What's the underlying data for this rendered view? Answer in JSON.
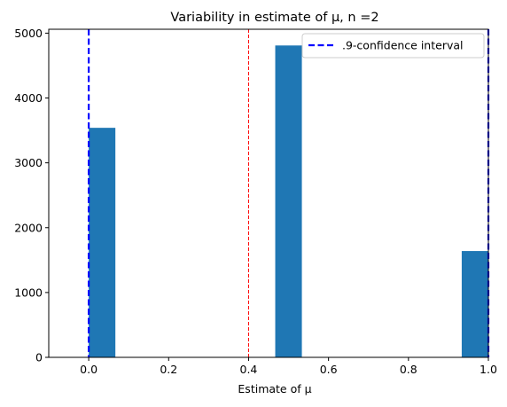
{
  "chart_data": {
    "type": "bar",
    "title": "Variability in estimate of μ, n =2",
    "xlabel": "Estimate of μ",
    "ylabel": "",
    "xlim": [
      -0.1,
      1.0
    ],
    "ylim": [
      0,
      5060
    ],
    "xticks": [
      0.0,
      0.2,
      0.4,
      0.6,
      0.8,
      1.0
    ],
    "xtick_labels": [
      "0.0",
      "0.2",
      "0.4",
      "0.6",
      "0.8",
      "1.0"
    ],
    "yticks": [
      0,
      1000,
      2000,
      3000,
      4000,
      5000
    ],
    "ytick_labels": [
      "0",
      "1000",
      "2000",
      "3000",
      "4000",
      "5000"
    ],
    "bins": [
      {
        "x0": 0.0,
        "x1": 0.0667,
        "value": 3540
      },
      {
        "x0": 0.4667,
        "x1": 0.5333,
        "value": 4810
      },
      {
        "x0": 0.9333,
        "x1": 1.0,
        "value": 1640
      }
    ],
    "bar_color": "#1f77b4",
    "confidence_interval": {
      "label": ".9-confidence interval",
      "low": 0.0,
      "high": 1.0,
      "color": "#0000ff"
    },
    "mean_line": {
      "x": 0.4,
      "color": "#ff0000"
    },
    "legend": {
      "position": "top-right",
      "entries": [
        ".9-confidence interval"
      ]
    },
    "grid": false
  }
}
